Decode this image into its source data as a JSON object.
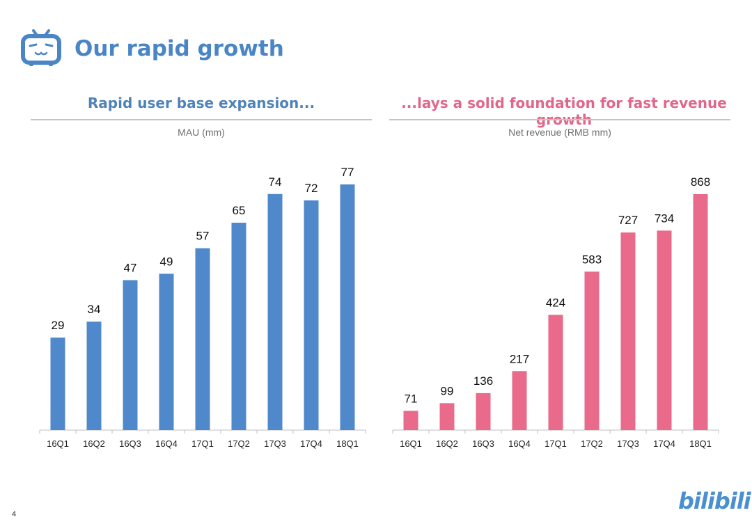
{
  "header": {
    "title": "Our rapid growth",
    "logo_icon": "tv-mascot-icon"
  },
  "page_number": "4",
  "brand_logo": "bilibili",
  "colors": {
    "title_blue": "#4a86c5",
    "left_bar": "#5089cb",
    "right_bar": "#ea6a8b",
    "left_heading": "#4f82b9",
    "right_heading": "#e0668a"
  },
  "chart_data": [
    {
      "type": "bar",
      "heading": "Rapid user base expansion...",
      "title": "MAU (mm)",
      "xlabel": "",
      "ylabel": "",
      "categories": [
        "16Q1",
        "16Q2",
        "16Q3",
        "16Q4",
        "17Q1",
        "17Q2",
        "17Q3",
        "17Q4",
        "18Q1"
      ],
      "values": [
        29,
        34,
        47,
        49,
        57,
        65,
        74,
        72,
        77
      ],
      "ylim": [
        0,
        77
      ],
      "grid": false,
      "data_labels": true
    },
    {
      "type": "bar",
      "heading": "...lays a solid foundation for fast revenue growth",
      "title": "Net revenue (RMB mm)",
      "xlabel": "",
      "ylabel": "",
      "categories": [
        "16Q1",
        "16Q2",
        "16Q3",
        "16Q4",
        "17Q1",
        "17Q2",
        "17Q3",
        "17Q4",
        "18Q1"
      ],
      "values": [
        71,
        99,
        136,
        217,
        424,
        583,
        727,
        734,
        868
      ],
      "ylim": [
        0,
        868
      ],
      "grid": false,
      "data_labels": true
    }
  ]
}
